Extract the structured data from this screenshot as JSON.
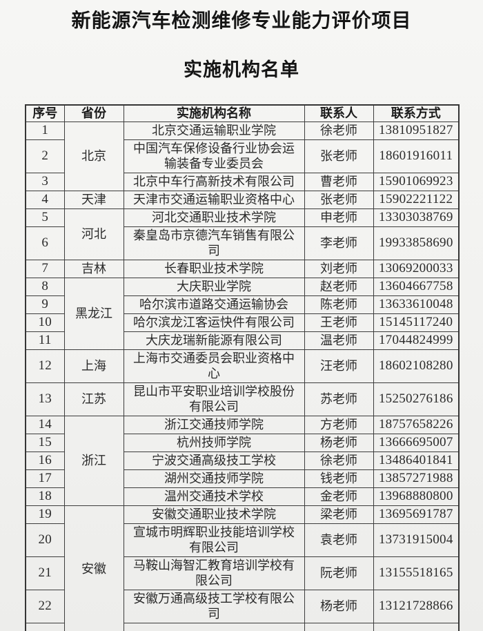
{
  "page": {
    "title": "新能源汽车检测维修专业能力评价项目",
    "subtitle": "实施机构名单"
  },
  "table": {
    "headers": [
      "序号",
      "省份",
      "实施机构名称",
      "联系人",
      "联系方式"
    ],
    "groups": [
      {
        "province": "北京",
        "entries": [
          {
            "no": "1",
            "org": "北京交通运输职业学院",
            "contact": "徐老师",
            "phone": "13810951827",
            "tall": false
          },
          {
            "no": "2",
            "org": "中国汽车保修设备行业协会运输装备专业委员会",
            "contact": "张老师",
            "phone": "18601916011",
            "tall": true
          },
          {
            "no": "3",
            "org": "北京中车行高新技术有限公司",
            "contact": "曹老师",
            "phone": "15901069923",
            "tall": false
          }
        ]
      },
      {
        "province": "天津",
        "entries": [
          {
            "no": "4",
            "org": "天津市交通运输职业资格中心",
            "contact": "张老师",
            "phone": "15902221122",
            "tall": false
          }
        ]
      },
      {
        "province": "河北",
        "entries": [
          {
            "no": "5",
            "org": "河北交通职业技术学院",
            "contact": "申老师",
            "phone": "13303038769",
            "tall": false
          },
          {
            "no": "6",
            "org": "秦皇岛市京德汽车销售有限公司",
            "contact": "李老师",
            "phone": "19933858690",
            "tall": true
          }
        ]
      },
      {
        "province": "吉林",
        "entries": [
          {
            "no": "7",
            "org": "长春职业技术学院",
            "contact": "刘老师",
            "phone": "13069200033",
            "tall": false
          }
        ]
      },
      {
        "province": "黑龙江",
        "entries": [
          {
            "no": "8",
            "org": "大庆职业学院",
            "contact": "赵老师",
            "phone": "13604667758",
            "tall": false
          },
          {
            "no": "9",
            "org": "哈尔滨市道路交通运输协会",
            "contact": "陈老师",
            "phone": "13633610048",
            "tall": false
          },
          {
            "no": "10",
            "org": "哈尔滨龙江客运快件有限公司",
            "contact": "王老师",
            "phone": "15145117240",
            "tall": false
          },
          {
            "no": "11",
            "org": "大庆龙瑞新能源有限公司",
            "contact": "温老师",
            "phone": "17044824999",
            "tall": false
          }
        ]
      },
      {
        "province": "上海",
        "entries": [
          {
            "no": "12",
            "org": "上海市交通委员会职业资格中心",
            "contact": "汪老师",
            "phone": "18602108280",
            "tall": true
          }
        ]
      },
      {
        "province": "江苏",
        "entries": [
          {
            "no": "13",
            "org": "昆山市平安职业培训学校股份有限公司",
            "contact": "苏老师",
            "phone": "15250276186",
            "tall": true
          }
        ]
      },
      {
        "province": "浙江",
        "entries": [
          {
            "no": "14",
            "org": "浙江交通技师学院",
            "contact": "方老师",
            "phone": "18757658226",
            "tall": false
          },
          {
            "no": "15",
            "org": "杭州技师学院",
            "contact": "杨老师",
            "phone": "13666695007",
            "tall": false
          },
          {
            "no": "16",
            "org": "宁波交通高级技工学校",
            "contact": "徐老师",
            "phone": "13486401841",
            "tall": false
          },
          {
            "no": "17",
            "org": "湖州交通技师学院",
            "contact": "钱老师",
            "phone": "13857271988",
            "tall": false
          },
          {
            "no": "18",
            "org": "温州交通技术学校",
            "contact": "金老师",
            "phone": "13968880800",
            "tall": false
          }
        ]
      },
      {
        "province": "安徽",
        "continues": true,
        "entries": [
          {
            "no": "19",
            "org": "安徽交通职业技术学院",
            "contact": "梁老师",
            "phone": "13695691787",
            "tall": false
          },
          {
            "no": "20",
            "org": "宣城市明辉职业技能培训学校有限公司",
            "contact": "袁老师",
            "phone": "13731915004",
            "tall": true
          },
          {
            "no": "21",
            "org": "马鞍山海智汇教育培训学校有限公司",
            "contact": "阮老师",
            "phone": "13155518165",
            "tall": true
          },
          {
            "no": "22",
            "org": "安徽万通高级技工学校有限公司",
            "contact": "杨老师",
            "phone": "13121728866",
            "tall": true
          }
        ]
      }
    ]
  }
}
